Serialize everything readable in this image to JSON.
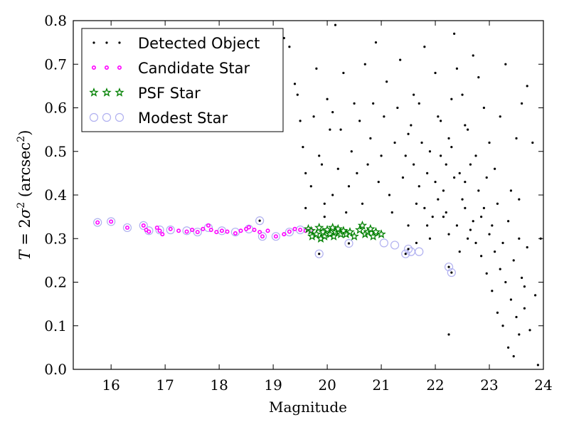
{
  "chart_data": {
    "type": "scatter",
    "title": "",
    "xlabel": "Magnitude",
    "ylabel_parts": {
      "var": "T",
      "eq": " = 2",
      "sigma": "σ",
      "sq": "2",
      "open": " (arcsec",
      "close": ")"
    },
    "xlim": [
      15.3,
      24
    ],
    "ylim": [
      0,
      0.8
    ],
    "x_ticks": [
      "16",
      "17",
      "18",
      "19",
      "20",
      "21",
      "22",
      "23",
      "24"
    ],
    "y_ticks": [
      "0.0",
      "0.1",
      "0.2",
      "0.3",
      "0.4",
      "0.5",
      "0.6",
      "0.7",
      "0.8"
    ],
    "grid": false,
    "legend_position": "upper-left",
    "series": [
      {
        "name": "Detected Object",
        "marker": "dot",
        "color": "#000000",
        "points": [
          [
            15.75,
            0.337
          ],
          [
            16.0,
            0.339
          ],
          [
            18.75,
            0.341
          ],
          [
            19.85,
            0.265
          ],
          [
            20.4,
            0.289
          ],
          [
            21.45,
            0.265
          ],
          [
            21.5,
            0.276
          ],
          [
            22.25,
            0.235
          ],
          [
            22.3,
            0.222
          ],
          [
            22.25,
            0.08
          ],
          [
            19.2,
            0.76
          ],
          [
            19.3,
            0.74
          ],
          [
            19.4,
            0.655
          ],
          [
            19.45,
            0.63
          ],
          [
            19.5,
            0.57
          ],
          [
            19.55,
            0.51
          ],
          [
            19.6,
            0.45
          ],
          [
            19.6,
            0.37
          ],
          [
            19.7,
            0.42
          ],
          [
            19.75,
            0.58
          ],
          [
            19.8,
            0.69
          ],
          [
            19.85,
            0.49
          ],
          [
            19.9,
            0.47
          ],
          [
            19.95,
            0.38
          ],
          [
            19.95,
            0.35
          ],
          [
            20.0,
            0.62
          ],
          [
            20.05,
            0.55
          ],
          [
            20.1,
            0.4
          ],
          [
            20.1,
            0.59
          ],
          [
            20.15,
            0.79
          ],
          [
            20.2,
            0.46
          ],
          [
            20.25,
            0.55
          ],
          [
            20.3,
            0.68
          ],
          [
            20.35,
            0.36
          ],
          [
            20.4,
            0.42
          ],
          [
            20.45,
            0.5
          ],
          [
            20.5,
            0.61
          ],
          [
            20.55,
            0.45
          ],
          [
            20.6,
            0.57
          ],
          [
            20.65,
            0.38
          ],
          [
            20.7,
            0.7
          ],
          [
            20.75,
            0.47
          ],
          [
            20.8,
            0.53
          ],
          [
            20.85,
            0.61
          ],
          [
            20.9,
            0.75
          ],
          [
            20.95,
            0.43
          ],
          [
            21.0,
            0.49
          ],
          [
            21.05,
            0.58
          ],
          [
            21.1,
            0.66
          ],
          [
            21.15,
            0.4
          ],
          [
            21.2,
            0.36
          ],
          [
            21.25,
            0.52
          ],
          [
            21.3,
            0.6
          ],
          [
            21.35,
            0.71
          ],
          [
            21.4,
            0.44
          ],
          [
            21.45,
            0.49
          ],
          [
            21.5,
            0.33
          ],
          [
            21.55,
            0.56
          ],
          [
            21.6,
            0.63
          ],
          [
            21.65,
            0.38
          ],
          [
            21.7,
            0.42
          ],
          [
            21.75,
            0.52
          ],
          [
            21.8,
            0.74
          ],
          [
            21.85,
            0.45
          ],
          [
            21.9,
            0.3
          ],
          [
            21.95,
            0.35
          ],
          [
            22.0,
            0.68
          ],
          [
            22.05,
            0.58
          ],
          [
            22.1,
            0.49
          ],
          [
            22.15,
            0.41
          ],
          [
            22.2,
            0.36
          ],
          [
            22.25,
            0.53
          ],
          [
            22.3,
            0.62
          ],
          [
            22.35,
            0.77
          ],
          [
            22.4,
            0.33
          ],
          [
            22.45,
            0.45
          ],
          [
            22.5,
            0.39
          ],
          [
            22.55,
            0.56
          ],
          [
            22.6,
            0.3
          ],
          [
            22.65,
            0.47
          ],
          [
            22.7,
            0.34
          ],
          [
            22.75,
            0.29
          ],
          [
            22.8,
            0.41
          ],
          [
            22.85,
            0.26
          ],
          [
            22.9,
            0.37
          ],
          [
            22.95,
            0.22
          ],
          [
            23.0,
            0.31
          ],
          [
            23.05,
            0.18
          ],
          [
            23.1,
            0.27
          ],
          [
            23.15,
            0.13
          ],
          [
            23.2,
            0.23
          ],
          [
            23.25,
            0.1
          ],
          [
            23.3,
            0.2
          ],
          [
            23.35,
            0.05
          ],
          [
            23.4,
            0.16
          ],
          [
            23.45,
            0.03
          ],
          [
            23.5,
            0.12
          ],
          [
            23.55,
            0.08
          ],
          [
            23.6,
            0.21
          ],
          [
            23.65,
            0.14
          ],
          [
            23.7,
            0.28
          ],
          [
            23.75,
            0.09
          ],
          [
            23.8,
            0.52
          ],
          [
            23.85,
            0.17
          ],
          [
            23.9,
            0.01
          ],
          [
            23.95,
            0.3
          ],
          [
            23.4,
            0.41
          ],
          [
            23.5,
            0.53
          ],
          [
            23.55,
            0.39
          ],
          [
            23.6,
            0.61
          ],
          [
            23.3,
            0.7
          ],
          [
            23.7,
            0.65
          ],
          [
            23.2,
            0.58
          ],
          [
            23.1,
            0.46
          ],
          [
            23.0,
            0.52
          ],
          [
            22.9,
            0.6
          ],
          [
            22.8,
            0.67
          ],
          [
            22.7,
            0.72
          ],
          [
            22.6,
            0.55
          ],
          [
            22.5,
            0.63
          ],
          [
            22.4,
            0.69
          ],
          [
            22.3,
            0.51
          ],
          [
            22.2,
            0.47
          ],
          [
            22.1,
            0.57
          ],
          [
            22.0,
            0.43
          ],
          [
            21.9,
            0.5
          ],
          [
            21.8,
            0.37
          ],
          [
            21.7,
            0.61
          ],
          [
            21.6,
            0.47
          ],
          [
            21.5,
            0.54
          ],
          [
            22.15,
            0.35
          ],
          [
            22.35,
            0.44
          ],
          [
            22.55,
            0.37
          ],
          [
            22.65,
            0.32
          ],
          [
            22.85,
            0.35
          ],
          [
            23.05,
            0.33
          ],
          [
            23.25,
            0.29
          ],
          [
            23.45,
            0.25
          ],
          [
            23.65,
            0.19
          ],
          [
            22.45,
            0.27
          ],
          [
            22.25,
            0.31
          ],
          [
            22.05,
            0.39
          ],
          [
            21.85,
            0.33
          ],
          [
            21.65,
            0.29
          ],
          [
            22.95,
            0.44
          ],
          [
            23.15,
            0.38
          ],
          [
            23.35,
            0.34
          ],
          [
            23.55,
            0.3
          ],
          [
            22.75,
            0.49
          ],
          [
            22.55,
            0.43
          ]
        ]
      },
      {
        "name": "Candidate Star",
        "marker": "small-dot",
        "color": "#ff00ff",
        "points": [
          [
            15.75,
            0.337
          ],
          [
            16.0,
            0.339
          ],
          [
            16.3,
            0.325
          ],
          [
            16.6,
            0.33
          ],
          [
            16.65,
            0.32
          ],
          [
            16.7,
            0.316
          ],
          [
            16.85,
            0.325
          ],
          [
            16.9,
            0.318
          ],
          [
            16.95,
            0.31
          ],
          [
            17.1,
            0.322
          ],
          [
            17.25,
            0.318
          ],
          [
            17.4,
            0.316
          ],
          [
            17.5,
            0.32
          ],
          [
            17.6,
            0.315
          ],
          [
            17.7,
            0.322
          ],
          [
            17.8,
            0.33
          ],
          [
            17.85,
            0.32
          ],
          [
            17.95,
            0.315
          ],
          [
            18.05,
            0.318
          ],
          [
            18.15,
            0.316
          ],
          [
            18.3,
            0.312
          ],
          [
            18.4,
            0.318
          ],
          [
            18.5,
            0.322
          ],
          [
            18.55,
            0.326
          ],
          [
            18.65,
            0.32
          ],
          [
            18.75,
            0.315
          ],
          [
            18.8,
            0.305
          ],
          [
            18.9,
            0.318
          ],
          [
            19.05,
            0.305
          ],
          [
            19.2,
            0.31
          ],
          [
            19.3,
            0.316
          ],
          [
            19.4,
            0.322
          ],
          [
            19.5,
            0.32
          ],
          [
            19.6,
            0.318
          ],
          [
            19.7,
            0.32
          ]
        ]
      },
      {
        "name": "PSF Star",
        "marker": "star",
        "color": "#008000",
        "points": [
          [
            19.65,
            0.322
          ],
          [
            19.7,
            0.318
          ],
          [
            19.72,
            0.305
          ],
          [
            19.8,
            0.31
          ],
          [
            19.85,
            0.325
          ],
          [
            19.88,
            0.3
          ],
          [
            19.92,
            0.315
          ],
          [
            19.95,
            0.305
          ],
          [
            20.0,
            0.32
          ],
          [
            20.05,
            0.31
          ],
          [
            20.1,
            0.325
          ],
          [
            20.12,
            0.305
          ],
          [
            20.15,
            0.315
          ],
          [
            20.2,
            0.322
          ],
          [
            20.25,
            0.31
          ],
          [
            20.3,
            0.318
          ],
          [
            20.35,
            0.31
          ],
          [
            20.42,
            0.315
          ],
          [
            20.5,
            0.305
          ],
          [
            20.6,
            0.32
          ],
          [
            20.65,
            0.33
          ],
          [
            20.7,
            0.31
          ],
          [
            20.75,
            0.315
          ],
          [
            20.8,
            0.322
          ],
          [
            20.85,
            0.305
          ],
          [
            20.9,
            0.315
          ],
          [
            21.0,
            0.31
          ]
        ]
      },
      {
        "name": "Modest Star",
        "marker": "open-circle",
        "color": "#b0b0f0",
        "points": [
          [
            15.75,
            0.337
          ],
          [
            16.0,
            0.339
          ],
          [
            16.3,
            0.325
          ],
          [
            16.6,
            0.33
          ],
          [
            16.7,
            0.318
          ],
          [
            16.9,
            0.32
          ],
          [
            17.1,
            0.32
          ],
          [
            17.4,
            0.318
          ],
          [
            17.6,
            0.315
          ],
          [
            17.8,
            0.325
          ],
          [
            18.05,
            0.318
          ],
          [
            18.3,
            0.315
          ],
          [
            18.55,
            0.322
          ],
          [
            18.75,
            0.341
          ],
          [
            18.8,
            0.305
          ],
          [
            19.05,
            0.305
          ],
          [
            19.3,
            0.315
          ],
          [
            19.5,
            0.32
          ],
          [
            19.85,
            0.265
          ],
          [
            20.4,
            0.289
          ],
          [
            21.05,
            0.29
          ],
          [
            21.25,
            0.285
          ],
          [
            21.45,
            0.265
          ],
          [
            21.5,
            0.276
          ],
          [
            21.55,
            0.27
          ],
          [
            21.7,
            0.27
          ],
          [
            22.25,
            0.235
          ],
          [
            22.3,
            0.222
          ]
        ]
      }
    ]
  }
}
